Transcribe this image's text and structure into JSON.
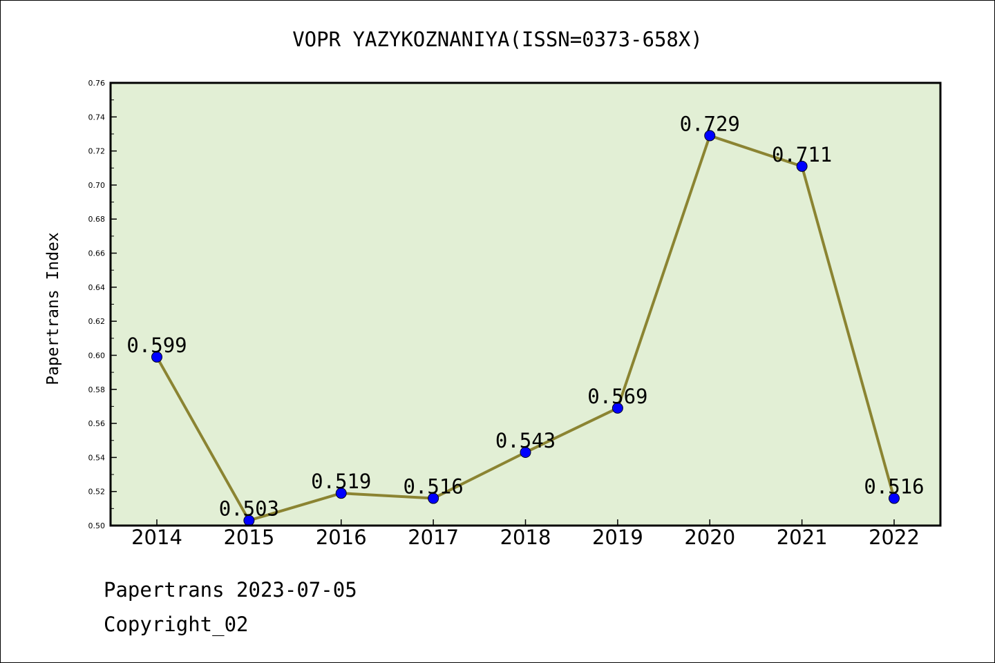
{
  "chart_data": {
    "type": "line",
    "title": "VOPR YAZYKOZNANIYA(ISSN=0373-658X)",
    "xlabel": "",
    "ylabel": "Papertrans Index",
    "categories": [
      "2014",
      "2015",
      "2016",
      "2017",
      "2018",
      "2019",
      "2020",
      "2021",
      "2022"
    ],
    "series": [
      {
        "values": [
          0.599,
          0.503,
          0.519,
          0.516,
          0.543,
          0.569,
          0.729,
          0.711,
          0.516
        ],
        "point_labels": [
          "0.599",
          "0.503",
          "0.519",
          "0.516",
          "0.543",
          "0.569",
          "0.729",
          "0.711",
          "0.516"
        ]
      }
    ],
    "ylim": [
      0.5,
      0.76
    ],
    "yticks": [
      "0.50",
      "0.52",
      "0.54",
      "0.56",
      "0.58",
      "0.60",
      "0.62",
      "0.64",
      "0.66",
      "0.68",
      "0.70",
      "0.72",
      "0.74",
      "0.76"
    ],
    "grid": false,
    "legend": "none",
    "colors": {
      "line": "#8B8432",
      "marker": "#0000FF",
      "plot_background": "#E2EFD5"
    }
  },
  "footer": {
    "date_line": "Papertrans 2023-07-05",
    "copyright": "Copyright_02"
  }
}
